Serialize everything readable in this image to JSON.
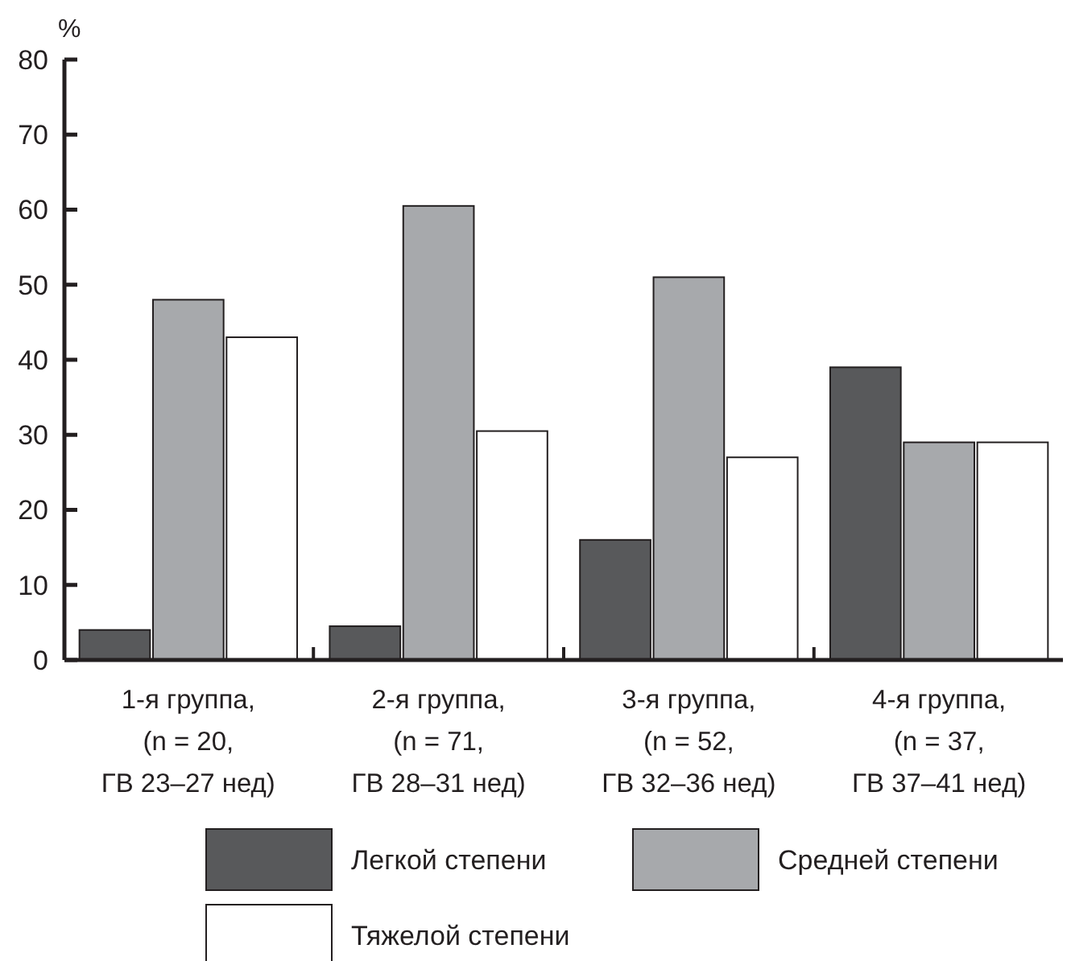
{
  "chart_data": {
    "type": "bar",
    "ylabel": "%",
    "categories": [
      "1-я группа,\n(n = 20,\nГВ 23–27 нед)",
      "2-я группа,\n(n = 71,\nГВ 28–31 нед)",
      "3-я группа,\n(n = 52,\nГВ 32–36 нед)",
      "4-я группа,\n(n = 37,\nГВ 37–41 нед)"
    ],
    "series": [
      {
        "name": "Легкой степени",
        "color": "#58595b",
        "values": [
          4,
          4.5,
          16,
          39
        ]
      },
      {
        "name": "Средней степени",
        "color": "#a7a9ac",
        "values": [
          48,
          60.5,
          51,
          29
        ]
      },
      {
        "name": "Тяжелой степени",
        "color": "#ffffff",
        "values": [
          43,
          30.5,
          27,
          29
        ]
      }
    ],
    "ylim": [
      0,
      80
    ],
    "yticks": [
      0,
      10,
      20,
      30,
      40,
      50,
      60,
      70,
      80
    ],
    "grid": false,
    "legend": "bottom"
  }
}
